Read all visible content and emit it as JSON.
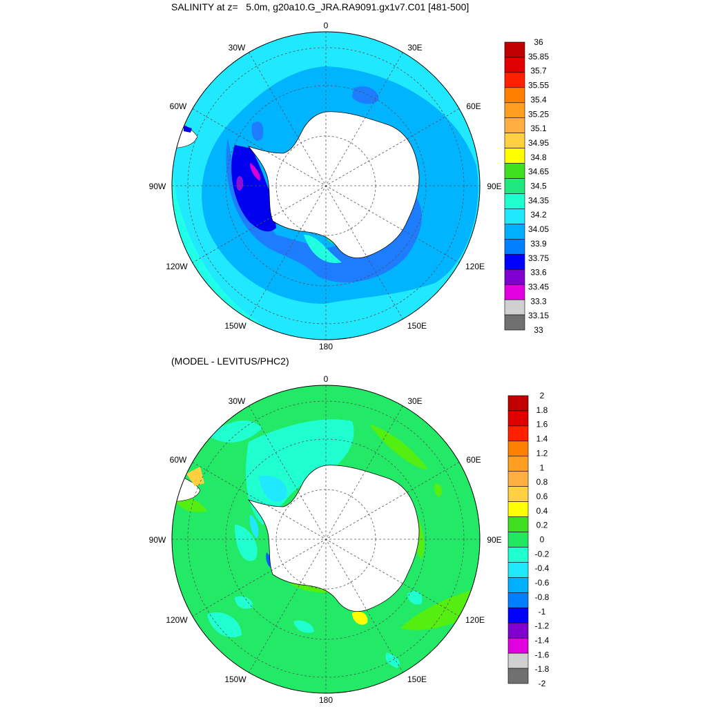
{
  "panels": [
    {
      "title": "SALINITY at z=   5.0m, g20a10.G_JRA.RA9091.gx1v7.C01 [481-500]",
      "lon_labels": [
        "0",
        "30E",
        "60E",
        "90E",
        "120E",
        "150E",
        "180",
        "150W",
        "120W",
        "90W",
        "60W",
        "30W"
      ],
      "colorbar": {
        "labels": [
          "36",
          "35.85",
          "35.7",
          "35.55",
          "35.4",
          "35.25",
          "35.1",
          "34.95",
          "34.8",
          "34.65",
          "34.5",
          "34.35",
          "34.2",
          "34.05",
          "33.9",
          "33.75",
          "33.6",
          "33.45",
          "33.3",
          "33.15",
          "33"
        ],
        "colors": [
          "#c00000",
          "#e00000",
          "#ff2000",
          "#ff8000",
          "#ff9f20",
          "#ffb040",
          "#ffd040",
          "#ffff00",
          "#40e020",
          "#20e880",
          "#20ffd0",
          "#20e8ff",
          "#00b0ff",
          "#0080ff",
          "#0000ff",
          "#8000d0",
          "#e000e0",
          "#d0d0d0",
          "#707070"
        ]
      }
    },
    {
      "title": "(MODEL - LEVITUS/PHC2)",
      "lon_labels": [
        "0",
        "30E",
        "60E",
        "90E",
        "120E",
        "150E",
        "180",
        "150W",
        "120W",
        "90W",
        "60W",
        "30W"
      ],
      "colorbar": {
        "labels": [
          "2",
          "1.8",
          "1.6",
          "1.4",
          "1.2",
          "1",
          "0.8",
          "0.6",
          "0.4",
          "0.2",
          "0",
          "-0.2",
          "-0.4",
          "-0.6",
          "-0.8",
          "-1",
          "-1.2",
          "-1.4",
          "-1.6",
          "-1.8",
          "-2"
        ],
        "colors": [
          "#c00000",
          "#e00000",
          "#ff2000",
          "#ff8000",
          "#ff9f20",
          "#ffb040",
          "#ffd040",
          "#ffff00",
          "#40e020",
          "#20e860",
          "#20ffd0",
          "#20e8ff",
          "#00b0ff",
          "#0080ff",
          "#0000ff",
          "#8000d0",
          "#e000e0",
          "#d0d0d0",
          "#707070"
        ]
      }
    }
  ]
}
